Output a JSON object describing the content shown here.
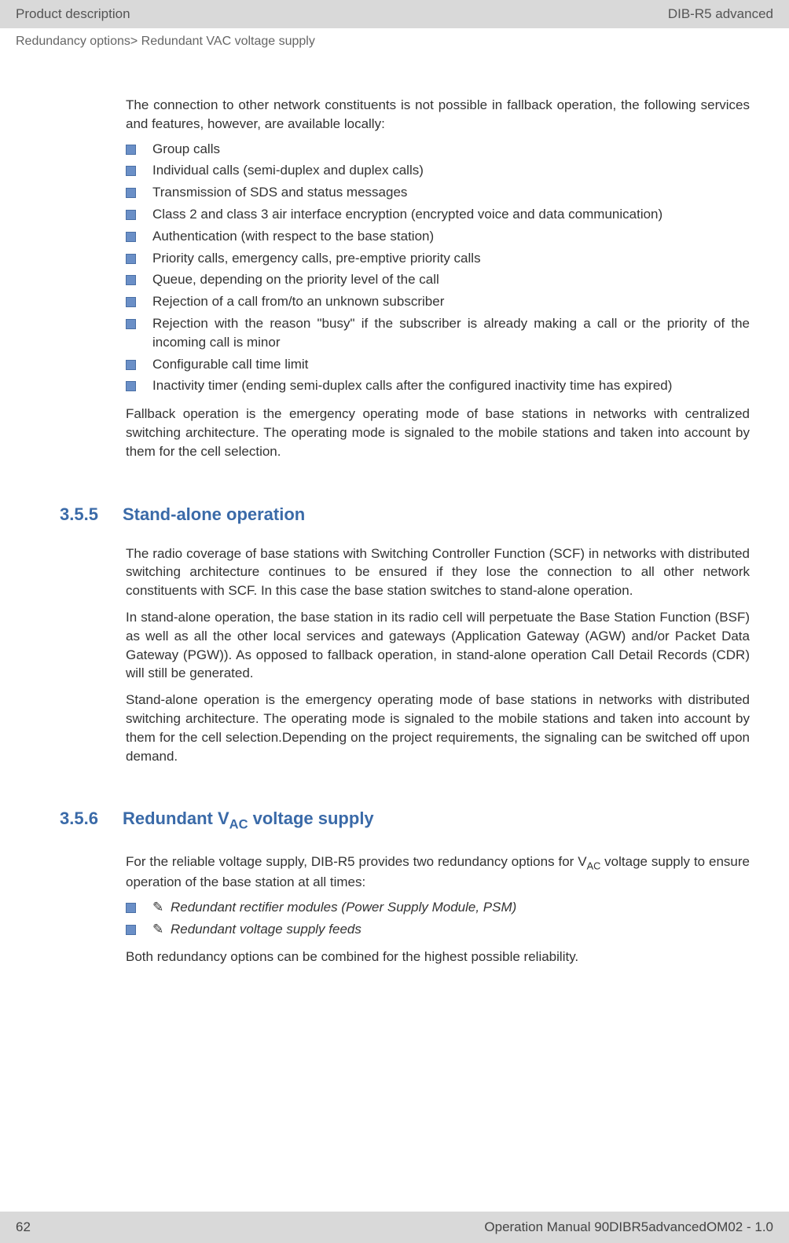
{
  "header": {
    "left": "Product description",
    "right": "DIB-R5 advanced"
  },
  "breadcrumb": "Redundancy options> Redundant VAC voltage supply",
  "intro": "The connection to other network constituents is not possible in fallback operation, the following services and features, however, are available locally:",
  "bullets1": [
    "Group calls",
    "Individual calls (semi-duplex and duplex calls)",
    "Transmission of SDS and status messages",
    "Class 2 and class 3 air interface encryption (encrypted voice and data communication)",
    "Authentication (with respect to the base station)",
    "Priority calls, emergency calls, pre-emptive priority calls",
    "Queue, depending on the priority level of the call",
    "Rejection of a call from/to an unknown subscriber",
    "Rejection with the reason \"busy\" if the subscriber is already making a call or the priority of the incoming call is minor",
    "Configurable call time limit",
    "Inactivity timer (ending semi-duplex calls after the configured inactivity time has expired)"
  ],
  "para_after_bullets1": "Fallback operation is the emergency operating mode of base stations in networks with centralized switching architecture. The operating mode is signaled to the mobile stations and taken into account by them for the cell selection.",
  "section355": {
    "num": "3.5.5",
    "title": "Stand-alone operation",
    "p1": "The radio coverage of base stations with Switching Controller Function (SCF) in networks with distributed switching architecture continues to be ensured if they lose the connection to all other network constituents with SCF. In this case the base station switches to stand-alone operation.",
    "p2": "In stand-alone operation, the base station in its radio cell will perpetuate the Base Station Function (BSF) as well as all the other local services and gateways (Application Gateway (AGW) and/or Packet Data Gateway (PGW)). As opposed to fallback operation, in stand-alone operation Call Detail Records (CDR) will still be generated.",
    "p3": "Stand-alone operation is the emergency operating mode of base stations in networks with distributed switching architecture. The operating mode is signaled to the mobile stations and taken into account by them for the cell selection.Depending on the project requirements, the signaling can be switched off upon demand."
  },
  "section356": {
    "num": "3.5.6",
    "title_pre": "Redundant V",
    "title_sub": "AC",
    "title_post": " voltage supply",
    "p1_pre": "For the reliable voltage supply, DIB-R5 provides two redundancy options for V",
    "p1_sub": "AC",
    "p1_post": " voltage supply to ensure operation of the base station at all times:",
    "bullets": [
      "Redundant rectifier modules (Power Supply Module, PSM)",
      "Redundant voltage supply feeds"
    ],
    "p2": "Both redundancy options can be combined for the highest possible reliability."
  },
  "footer": {
    "page": "62",
    "right": "Operation Manual 90DIBR5advancedOM02 - 1.0"
  },
  "hand_glyph": "✎"
}
